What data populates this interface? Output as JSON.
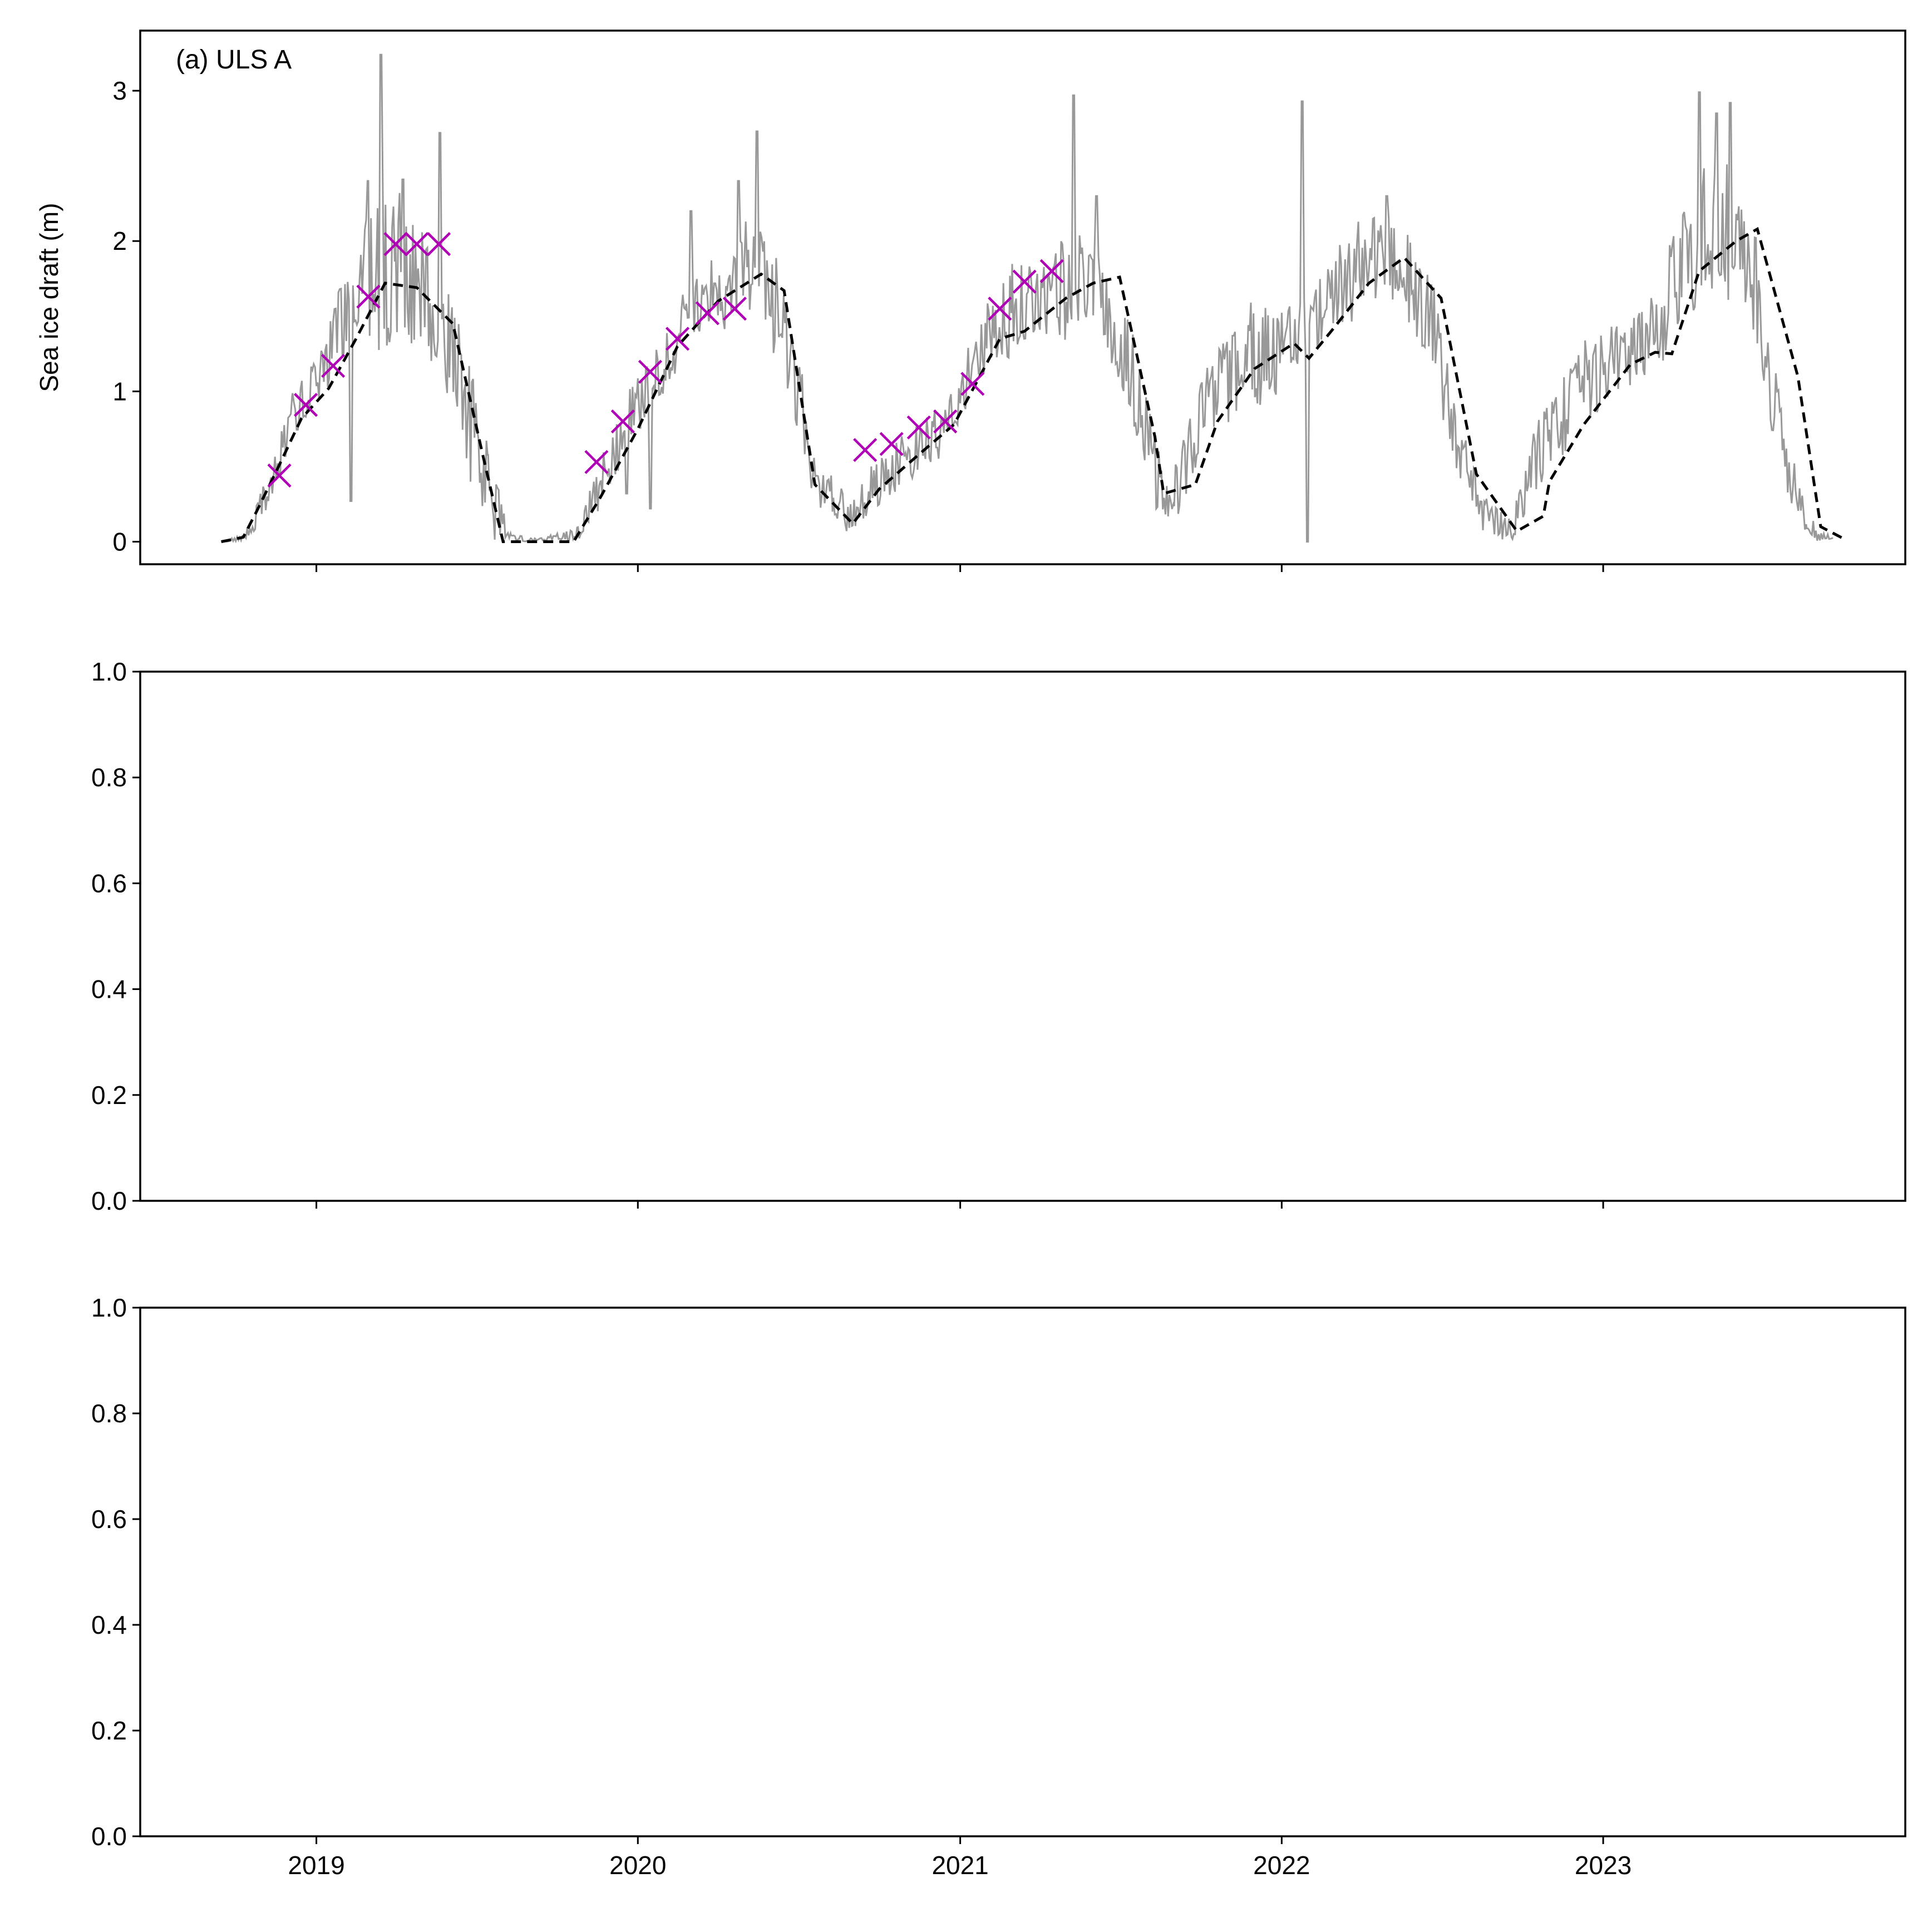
{
  "chart_data": [
    {
      "type": "line",
      "panel_label": "(a) ULS A",
      "ylabel": "Sea ice draft (m)",
      "xlabel": "",
      "ylim": [
        -0.15,
        3.4
      ],
      "xlim": [
        "2018-06-15",
        "2023-12-10"
      ],
      "yticks": [
        0,
        1,
        2,
        3
      ],
      "yticklabels": [
        "0",
        "1",
        "2",
        "3"
      ],
      "xticks": [
        "2019-01-01",
        "2020-01-01",
        "2021-01-01",
        "2022-01-01",
        "2023-01-01"
      ],
      "xticklabels": [],
      "grid": false,
      "colors": {
        "daily": "#999999",
        "monthly_mean": "#000000",
        "markers": "#b000b5"
      },
      "series": [
        {
          "style": "thin-gray-line",
          "envelope": [
            [
              "2018-09-15",
              0.0,
              0.0
            ],
            [
              "2018-10-10",
              0.0,
              0.05
            ],
            [
              "2018-10-25",
              0.05,
              0.3
            ],
            [
              "2018-11-15",
              0.3,
              0.6
            ],
            [
              "2018-12-05",
              0.7,
              1.0
            ],
            [
              "2019-01-05",
              0.9,
              1.3
            ],
            [
              "2019-02-01",
              1.2,
              1.8
            ],
            [
              "2019-03-01",
              1.3,
              2.2
            ],
            [
              "2019-04-01",
              1.2,
              2.4
            ],
            [
              "2019-05-01",
              1.3,
              2.2
            ],
            [
              "2019-06-01",
              0.9,
              1.9
            ],
            [
              "2019-06-25",
              0.3,
              1.2
            ],
            [
              "2019-07-15",
              0.0,
              0.7
            ],
            [
              "2019-08-10",
              0.0,
              0.05
            ],
            [
              "2019-09-15",
              0.0,
              0.03
            ],
            [
              "2019-10-25",
              0.0,
              0.1
            ],
            [
              "2019-11-20",
              0.2,
              0.6
            ],
            [
              "2019-12-20",
              0.6,
              1.0
            ],
            [
              "2020-01-25",
              0.9,
              1.4
            ],
            [
              "2020-02-25",
              1.2,
              1.7
            ],
            [
              "2020-04-01",
              1.4,
              2.0
            ],
            [
              "2020-05-10",
              1.4,
              2.2
            ],
            [
              "2020-06-10",
              1.2,
              1.9
            ],
            [
              "2020-07-10",
              0.4,
              1.0
            ],
            [
              "2020-08-10",
              0.05,
              0.4
            ],
            [
              "2020-09-01",
              0.05,
              0.3
            ],
            [
              "2020-10-01",
              0.2,
              0.6
            ],
            [
              "2020-11-15",
              0.4,
              0.8
            ],
            [
              "2020-12-20",
              0.6,
              1.0
            ],
            [
              "2021-02-01",
              1.1,
              1.6
            ],
            [
              "2021-03-01",
              1.2,
              1.9
            ],
            [
              "2021-04-15",
              1.3,
              2.0
            ],
            [
              "2021-06-01",
              1.4,
              2.1
            ],
            [
              "2021-07-10",
              0.9,
              1.6
            ],
            [
              "2021-08-10",
              0.2,
              0.8
            ],
            [
              "2021-09-01",
              0.1,
              0.5
            ],
            [
              "2021-10-01",
              0.5,
              1.1
            ],
            [
              "2021-11-15",
              0.8,
              1.6
            ],
            [
              "2022-01-01",
              1.0,
              1.6
            ],
            [
              "2022-02-15",
              1.3,
              1.8
            ],
            [
              "2022-04-01",
              1.5,
              2.2
            ],
            [
              "2022-05-15",
              1.5,
              2.2
            ],
            [
              "2022-06-20",
              1.1,
              1.8
            ],
            [
              "2022-07-20",
              0.4,
              0.9
            ],
            [
              "2022-08-20",
              0.0,
              0.3
            ],
            [
              "2022-09-20",
              0.0,
              0.2
            ],
            [
              "2022-10-20",
              0.3,
              0.9
            ],
            [
              "2022-12-01",
              0.7,
              1.3
            ],
            [
              "2023-01-15",
              1.0,
              1.5
            ],
            [
              "2023-03-01",
              1.1,
              1.7
            ],
            [
              "2023-04-15",
              1.5,
              2.5
            ],
            [
              "2023-05-20",
              1.6,
              2.7
            ],
            [
              "2023-06-25",
              1.2,
              2.0
            ],
            [
              "2023-07-25",
              0.3,
              0.8
            ],
            [
              "2023-08-20",
              0.0,
              0.2
            ],
            [
              "2023-09-20",
              0.0,
              0.05
            ]
          ],
          "spikes": [
            [
              "2019-03-15",
              3.24
            ],
            [
              "2019-03-01",
              2.4
            ],
            [
              "2019-04-10",
              2.41
            ],
            [
              "2019-05-22",
              2.72
            ],
            [
              "2019-02-10",
              0.27
            ],
            [
              "2020-05-15",
              2.73
            ],
            [
              "2020-04-25",
              2.4
            ],
            [
              "2020-03-01",
              2.2
            ],
            [
              "2021-05-10",
              2.97
            ],
            [
              "2021-06-05",
              2.3
            ],
            [
              "2022-01-25",
              2.93
            ],
            [
              "2022-01-30",
              0.0
            ],
            [
              "2022-05-01",
              2.3
            ],
            [
              "2023-04-20",
              2.99
            ],
            [
              "2023-05-25",
              2.92
            ],
            [
              "2023-05-10",
              2.85
            ],
            [
              "2020-01-15",
              0.22
            ],
            [
              "2019-12-20",
              0.32
            ]
          ]
        },
        {
          "style": "black-dashed-line",
          "points": [
            [
              "2018-09-15",
              0.0
            ],
            [
              "2018-10-10",
              0.03
            ],
            [
              "2018-10-25",
              0.2
            ],
            [
              "2018-11-15",
              0.45
            ],
            [
              "2018-12-15",
              0.82
            ],
            [
              "2019-01-15",
              1.02
            ],
            [
              "2019-02-15",
              1.35
            ],
            [
              "2019-03-20",
              1.72
            ],
            [
              "2019-04-25",
              1.69
            ],
            [
              "2019-06-05",
              1.45
            ],
            [
              "2019-07-10",
              0.55
            ],
            [
              "2019-08-01",
              0.0
            ],
            [
              "2019-10-20",
              0.0
            ],
            [
              "2019-11-20",
              0.3
            ],
            [
              "2020-01-01",
              0.75
            ],
            [
              "2020-02-15",
              1.3
            ],
            [
              "2020-04-01",
              1.6
            ],
            [
              "2020-05-20",
              1.78
            ],
            [
              "2020-06-15",
              1.67
            ],
            [
              "2020-07-20",
              0.38
            ],
            [
              "2020-09-01",
              0.12
            ],
            [
              "2020-10-01",
              0.35
            ],
            [
              "2020-11-15",
              0.58
            ],
            [
              "2020-12-25",
              0.78
            ],
            [
              "2021-02-15",
              1.35
            ],
            [
              "2021-03-15",
              1.4
            ],
            [
              "2021-05-01",
              1.62
            ],
            [
              "2021-06-01",
              1.72
            ],
            [
              "2021-07-01",
              1.76
            ],
            [
              "2021-08-10",
              0.7
            ],
            [
              "2021-08-20",
              0.32
            ],
            [
              "2021-09-25",
              0.38
            ],
            [
              "2021-10-20",
              0.8
            ],
            [
              "2021-12-01",
              1.15
            ],
            [
              "2022-01-15",
              1.32
            ],
            [
              "2022-02-01",
              1.22
            ],
            [
              "2022-03-01",
              1.42
            ],
            [
              "2022-04-10",
              1.72
            ],
            [
              "2022-05-20",
              1.89
            ],
            [
              "2022-07-01",
              1.62
            ],
            [
              "2022-08-10",
              0.45
            ],
            [
              "2022-09-25",
              0.07
            ],
            [
              "2022-10-25",
              0.17
            ],
            [
              "2022-11-01",
              0.4
            ],
            [
              "2022-12-10",
              0.78
            ],
            [
              "2023-02-01",
              1.18
            ],
            [
              "2023-03-01",
              1.26
            ],
            [
              "2023-03-20",
              1.25
            ],
            [
              "2023-04-20",
              1.8
            ],
            [
              "2023-06-01",
              2.0
            ],
            [
              "2023-06-25",
              2.08
            ],
            [
              "2023-08-10",
              1.1
            ],
            [
              "2023-09-05",
              0.1
            ],
            [
              "2023-10-01",
              0.02
            ]
          ]
        },
        {
          "style": "magenta-x-markers",
          "points": [
            [
              "2018-11-20",
              0.44
            ],
            [
              "2018-12-20",
              0.91
            ],
            [
              "2019-01-20",
              1.17
            ],
            [
              "2019-03-01",
              1.63
            ],
            [
              "2019-04-01",
              1.98
            ],
            [
              "2019-04-25",
              1.98
            ],
            [
              "2019-05-20",
              1.98
            ],
            [
              "2019-11-15",
              0.53
            ],
            [
              "2019-12-15",
              0.8
            ],
            [
              "2020-01-15",
              1.13
            ],
            [
              "2020-02-15",
              1.35
            ],
            [
              "2020-03-20",
              1.52
            ],
            [
              "2020-04-20",
              1.55
            ],
            [
              "2020-09-15",
              0.61
            ],
            [
              "2020-10-15",
              0.65
            ],
            [
              "2020-11-15",
              0.76
            ],
            [
              "2020-12-15",
              0.8
            ],
            [
              "2021-01-15",
              1.05
            ],
            [
              "2021-02-15",
              1.55
            ],
            [
              "2021-03-15",
              1.73
            ],
            [
              "2021-04-15",
              1.8
            ]
          ]
        }
      ]
    },
    {
      "type": "line",
      "ylim": [
        0.0,
        1.0
      ],
      "yticks": [
        0.0,
        0.2,
        0.4,
        0.6,
        0.8,
        1.0
      ],
      "yticklabels": [
        "0.0",
        "0.2",
        "0.4",
        "0.6",
        "0.8",
        "1.0"
      ],
      "xticks": [
        "2019-01-01",
        "2020-01-01",
        "2021-01-01",
        "2022-01-01",
        "2023-01-01"
      ],
      "xticklabels": [],
      "series": []
    },
    {
      "type": "line",
      "ylim": [
        0.0,
        1.0
      ],
      "yticks": [
        0.0,
        0.2,
        0.4,
        0.6,
        0.8,
        1.0
      ],
      "yticklabels": [
        "0.0",
        "0.2",
        "0.4",
        "0.6",
        "0.8",
        "1.0"
      ],
      "xticks": [
        "2019-01-01",
        "2020-01-01",
        "2021-01-01",
        "2022-01-01",
        "2023-01-01"
      ],
      "xticklabels": [
        "2019",
        "2020",
        "2021",
        "2022",
        "2023"
      ],
      "series": []
    }
  ]
}
